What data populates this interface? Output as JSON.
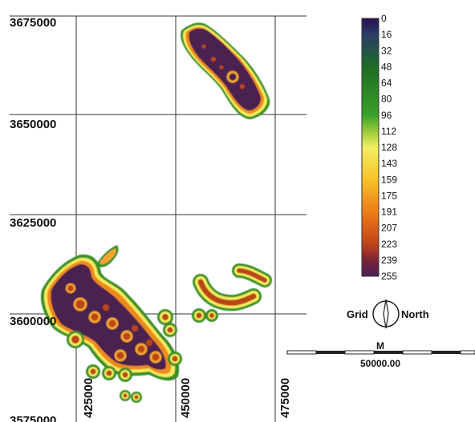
{
  "map": {
    "y_labels": [
      "3675000",
      "3650000",
      "3625000",
      "3600000",
      "3575000"
    ],
    "x_labels": [
      "425000",
      "450000",
      "475000"
    ]
  },
  "legend": {
    "values": [
      "0",
      "16",
      "32",
      "48",
      "64",
      "80",
      "96",
      "112",
      "128",
      "143",
      "159",
      "175",
      "191",
      "207",
      "223",
      "239",
      "255"
    ],
    "stops": [
      {
        "value": 0,
        "color": "#2a0f55"
      },
      {
        "value": 16,
        "color": "#2a3e67"
      },
      {
        "value": 48,
        "color": "#1e6b24"
      },
      {
        "value": 96,
        "color": "#3aa02a"
      },
      {
        "value": 112,
        "color": "#9ccc3a"
      },
      {
        "value": 128,
        "color": "#f3ee63"
      },
      {
        "value": 159,
        "color": "#f6c22a"
      },
      {
        "value": 191,
        "color": "#ee7d18"
      },
      {
        "value": 223,
        "color": "#c04418"
      },
      {
        "value": 239,
        "color": "#7b2435"
      },
      {
        "value": 255,
        "color": "#4a1f55"
      }
    ]
  },
  "north_arrow": {
    "left_label": "Grid",
    "right_label": "North"
  },
  "scale_bar": {
    "unit": "M",
    "distance": "50000.00"
  },
  "colors": {
    "core": "#4b214f",
    "hot": "#b94616",
    "warm": "#f3a533",
    "edge": "#f4ea5c",
    "fringe": "#3a8f2c"
  }
}
